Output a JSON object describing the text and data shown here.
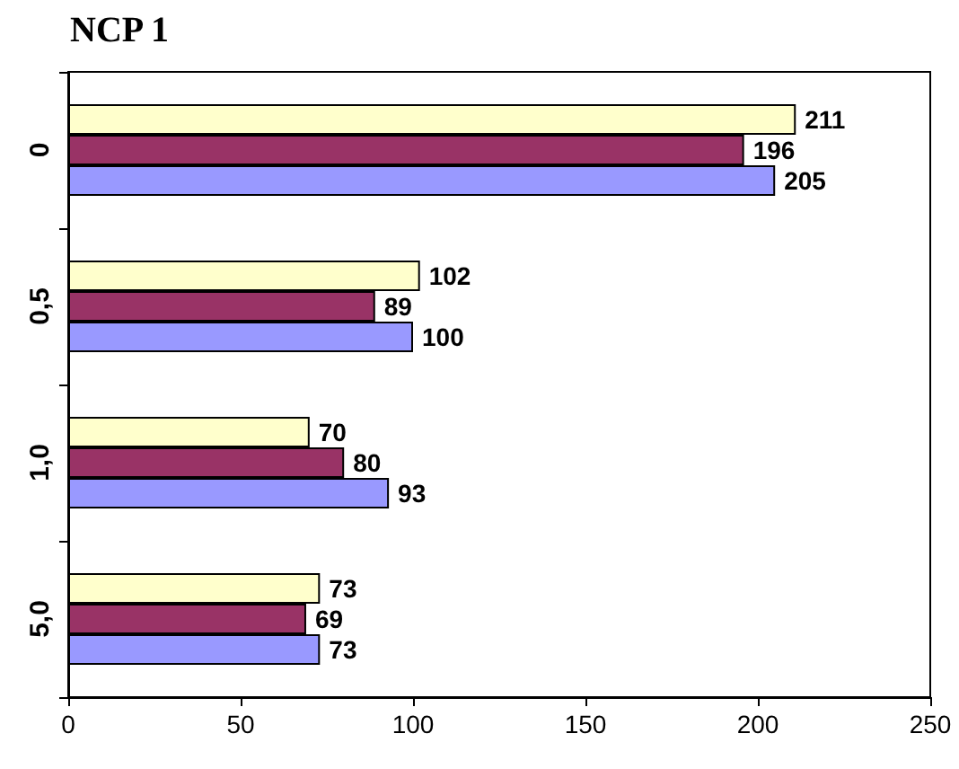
{
  "chart_data": {
    "type": "bar",
    "orientation": "horizontal",
    "title": "NCP 1",
    "categories": [
      "0",
      "0,5",
      "1,0",
      "5,0"
    ],
    "series": [
      {
        "color": "#ffffcc",
        "values": [
          211,
          102,
          70,
          73
        ]
      },
      {
        "color": "#993366",
        "values": [
          196,
          89,
          80,
          69
        ]
      },
      {
        "color": "#9999ff",
        "values": [
          205,
          100,
          93,
          73
        ]
      }
    ],
    "xlim": [
      0,
      250
    ],
    "xticks": [
      0,
      50,
      100,
      150,
      200,
      250
    ],
    "grid": false,
    "data_labels": true
  }
}
